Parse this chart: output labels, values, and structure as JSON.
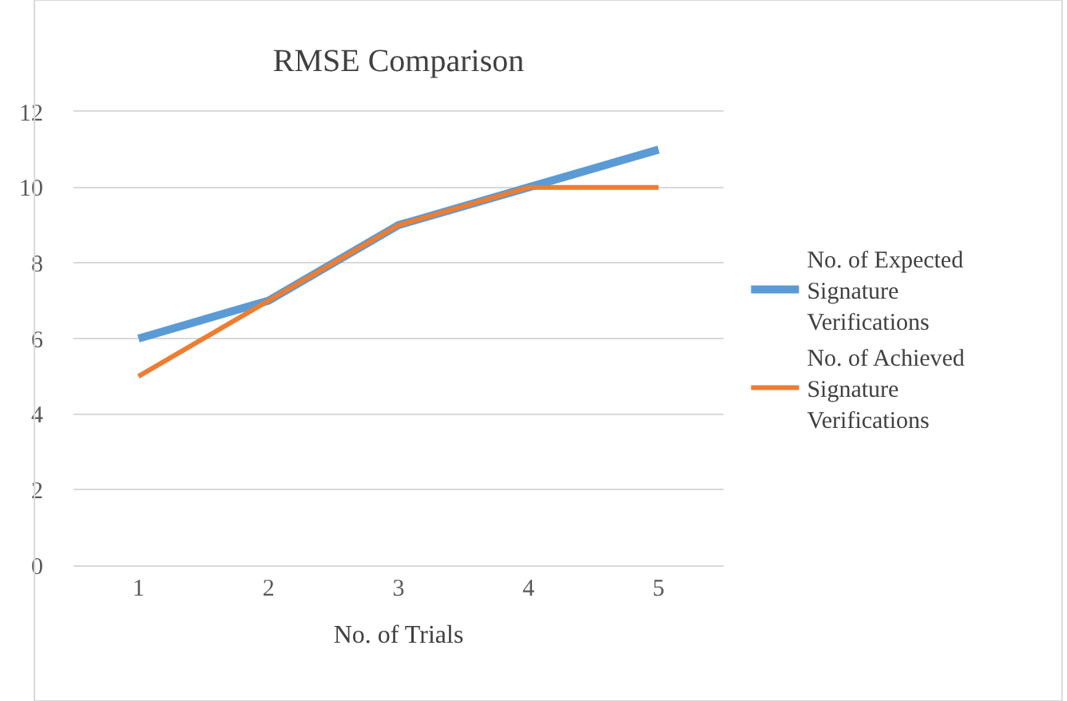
{
  "chart_data": {
    "type": "line",
    "title": "RMSE Comparison",
    "xlabel": "No. of Trials",
    "categories": [
      "1",
      "2",
      "3",
      "4",
      "5"
    ],
    "series": [
      {
        "name": "No. of Expected Signature Verifications",
        "color": "#5b9bd5",
        "values": [
          6,
          7,
          9,
          10,
          11
        ]
      },
      {
        "name": "No. of Achieved Signature Verifications",
        "color": "#ed7d31",
        "values": [
          5,
          7,
          9,
          10,
          10
        ]
      }
    ],
    "ylim": [
      0,
      12
    ],
    "yticks": [
      0,
      2,
      4,
      6,
      8,
      10,
      12
    ],
    "grid": "y",
    "legend": "right",
    "marker": "none",
    "line_style": "solid"
  }
}
